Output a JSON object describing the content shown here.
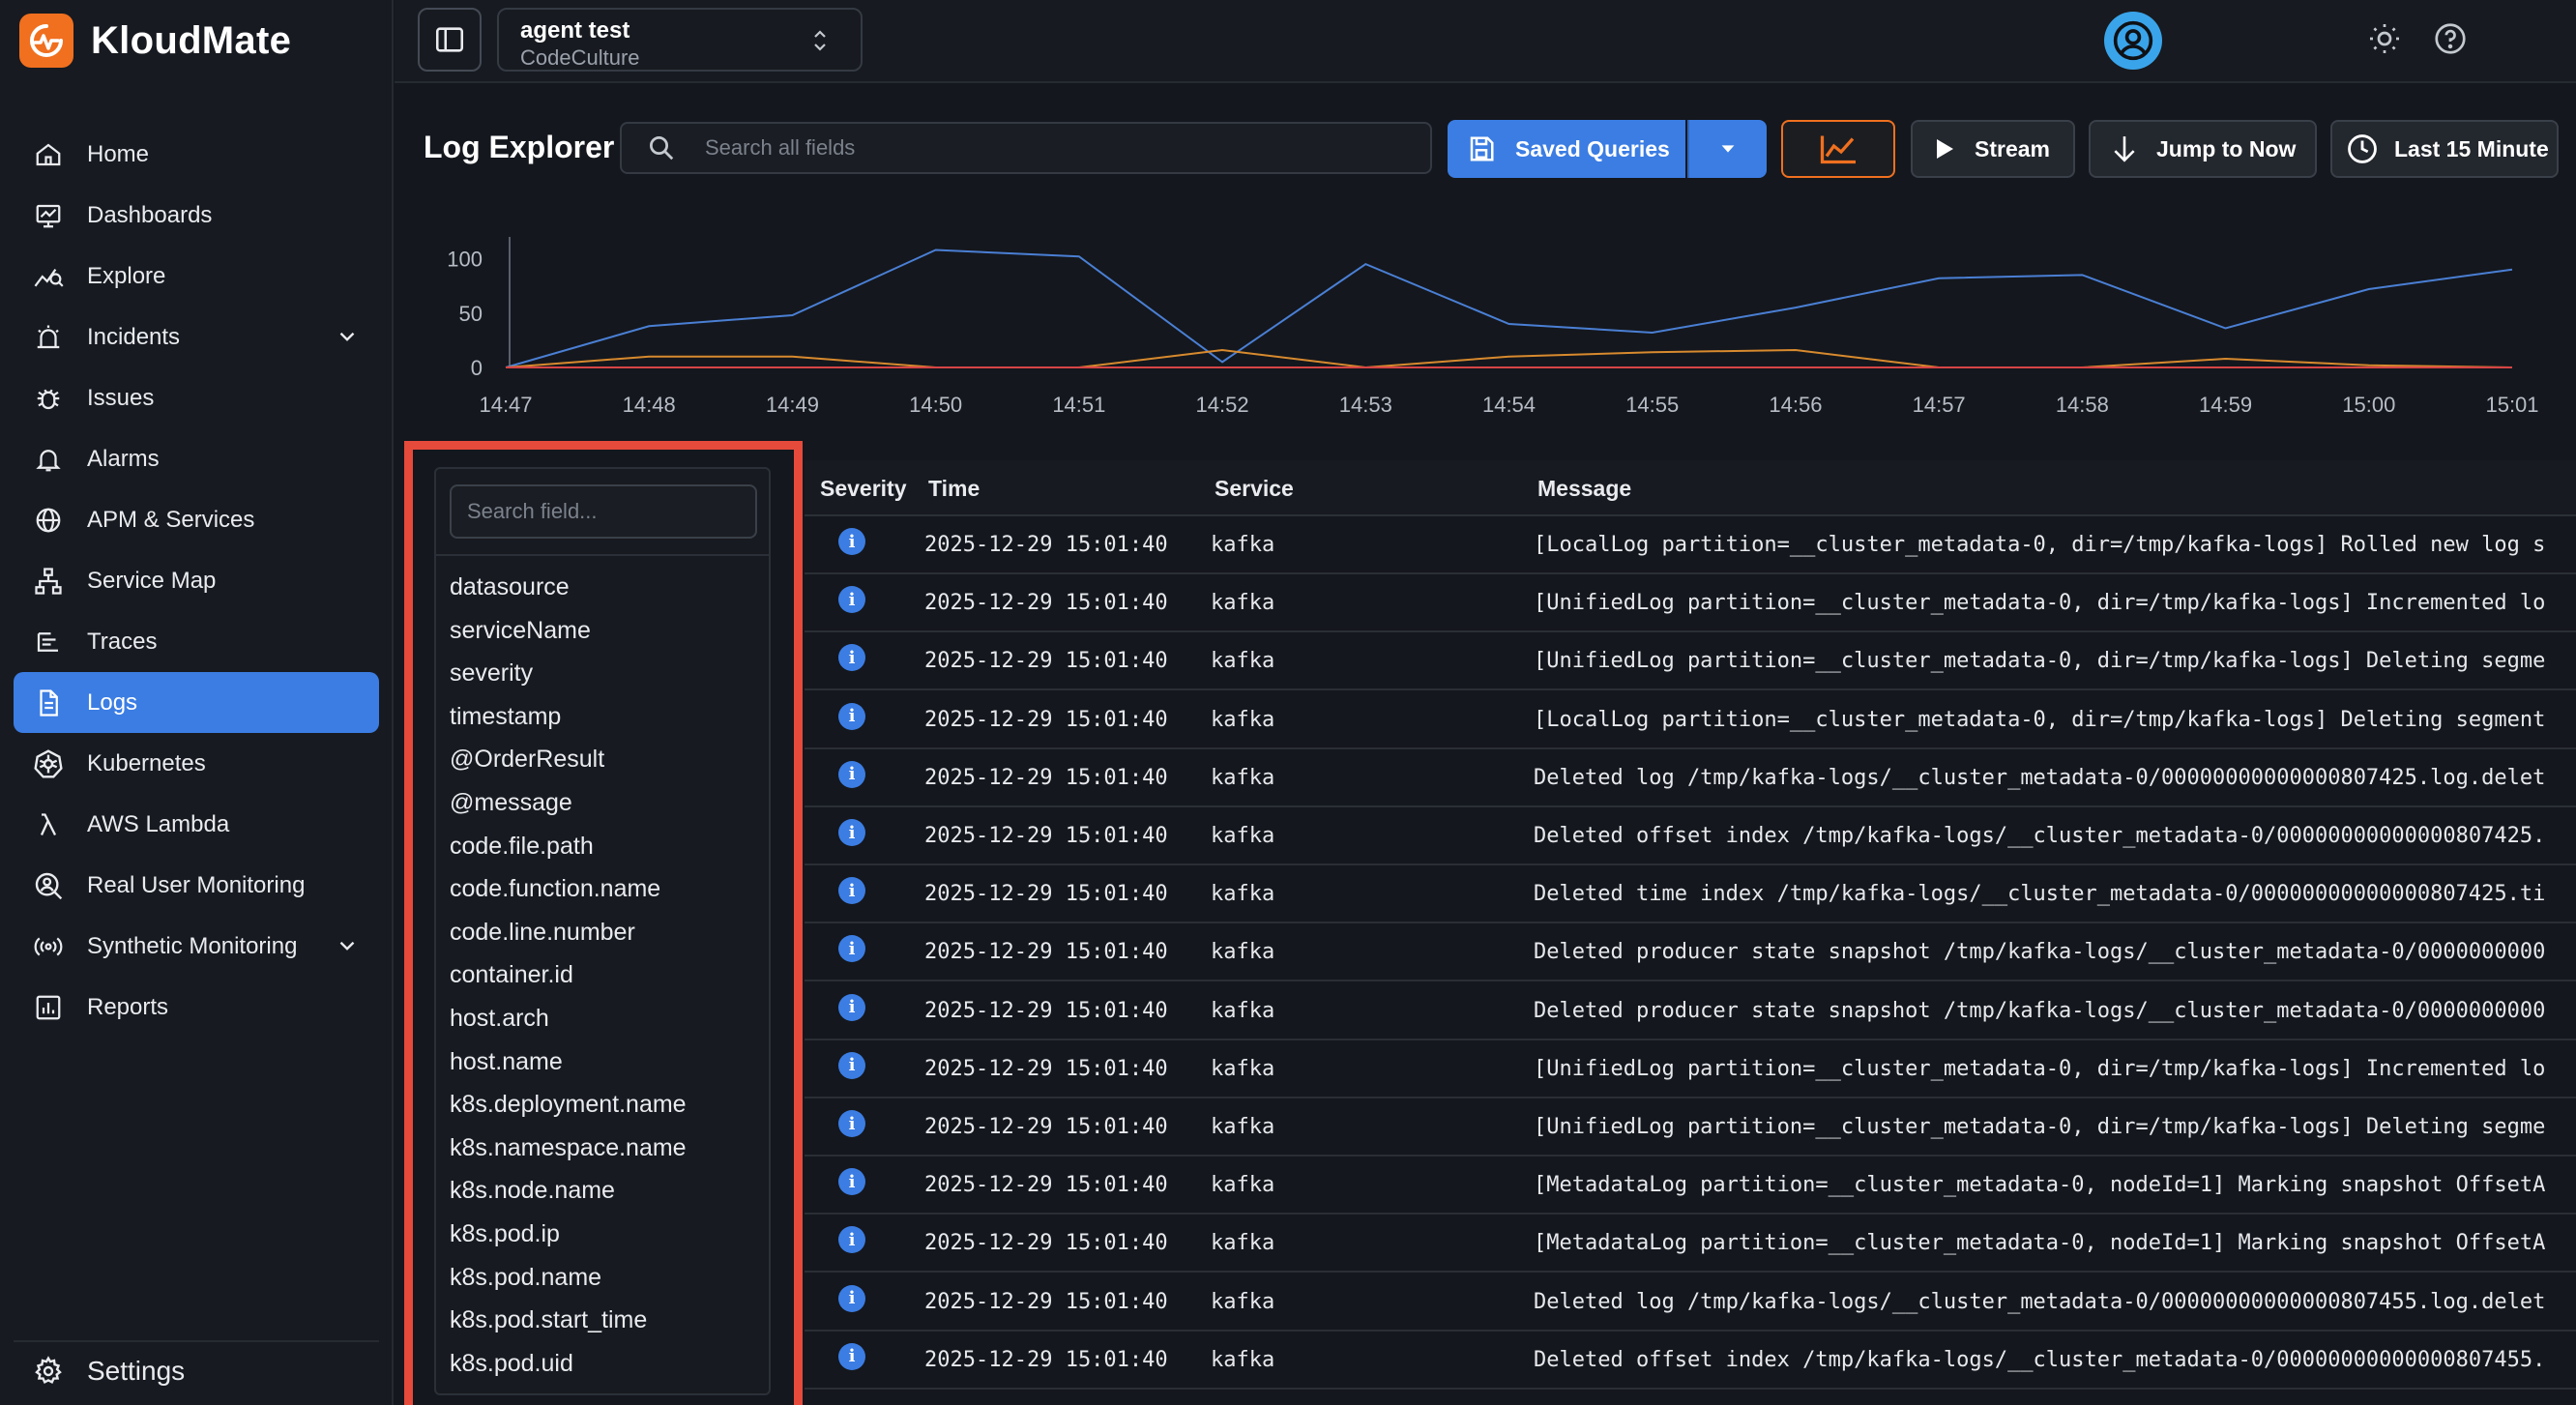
{
  "brand": {
    "name": "KloudMate"
  },
  "sidebar": {
    "items": [
      {
        "label": "Home",
        "icon": "home-icon"
      },
      {
        "label": "Dashboards",
        "icon": "dashboard-icon"
      },
      {
        "label": "Explore",
        "icon": "explore-icon"
      },
      {
        "label": "Incidents",
        "icon": "incidents-icon",
        "expandable": true
      },
      {
        "label": "Issues",
        "icon": "bug-icon"
      },
      {
        "label": "Alarms",
        "icon": "bell-icon"
      },
      {
        "label": "APM & Services",
        "icon": "globe-icon"
      },
      {
        "label": "Service Map",
        "icon": "service-map-icon"
      },
      {
        "label": "Traces",
        "icon": "traces-icon"
      },
      {
        "label": "Logs",
        "icon": "logs-icon",
        "active": true
      },
      {
        "label": "Kubernetes",
        "icon": "kubernetes-icon"
      },
      {
        "label": "AWS Lambda",
        "icon": "lambda-icon"
      },
      {
        "label": "Real User Monitoring",
        "icon": "rum-icon"
      },
      {
        "label": "Synthetic Monitoring",
        "icon": "synthetic-icon",
        "expandable": true
      },
      {
        "label": "Reports",
        "icon": "reports-icon"
      }
    ],
    "settings_label": "Settings"
  },
  "topbar": {
    "org_title": "agent test",
    "org_subtitle": "CodeCulture"
  },
  "toolbar": {
    "page_title": "Log Explorer",
    "search_placeholder": "Search all fields",
    "saved_queries_label": "Saved Queries",
    "stream_label": "Stream",
    "jump_label": "Jump to Now",
    "time_range_label": "Last 15 Minute"
  },
  "chart_data": {
    "type": "line",
    "x": [
      "14:47",
      "14:48",
      "14:49",
      "14:50",
      "14:51",
      "14:52",
      "14:53",
      "14:54",
      "14:55",
      "14:56",
      "14:57",
      "14:58",
      "14:59",
      "15:00",
      "15:01"
    ],
    "yticks": [
      0,
      50,
      100
    ],
    "ylim": [
      0,
      120
    ],
    "series": [
      {
        "color": "#4a7fd4",
        "values": [
          0,
          38,
          48,
          108,
          102,
          5,
          95,
          40,
          32,
          55,
          82,
          85,
          36,
          72,
          90
        ]
      },
      {
        "color": "#d88a2e",
        "values": [
          0,
          10,
          10,
          0,
          0,
          16,
          0,
          10,
          14,
          16,
          0,
          0,
          8,
          2,
          0
        ]
      },
      {
        "color": "#d64545",
        "values": [
          0,
          0,
          0,
          0,
          0,
          0,
          0,
          0,
          0,
          0,
          0,
          0,
          0,
          0,
          0
        ]
      }
    ],
    "grid": false
  },
  "fields": {
    "search_placeholder": "Search field...",
    "items": [
      "datasource",
      "serviceName",
      "severity",
      "timestamp",
      "@OrderResult",
      "@message",
      "code.file.path",
      "code.function.name",
      "code.line.number",
      "container.id",
      "host.arch",
      "host.name",
      "k8s.deployment.name",
      "k8s.namespace.name",
      "k8s.node.name",
      "k8s.pod.ip",
      "k8s.pod.name",
      "k8s.pod.start_time",
      "k8s.pod.uid"
    ]
  },
  "table": {
    "columns": {
      "severity": "Severity",
      "time": "Time",
      "service": "Service",
      "message": "Message"
    },
    "rows": [
      {
        "severity": "i",
        "time": "2025-12-29 15:01:40",
        "service": "kafka",
        "message": "[LocalLog partition=__cluster_metadata-0, dir=/tmp/kafka-logs] Rolled new log s"
      },
      {
        "severity": "i",
        "time": "2025-12-29 15:01:40",
        "service": "kafka",
        "message": "[UnifiedLog partition=__cluster_metadata-0, dir=/tmp/kafka-logs] Incremented lo"
      },
      {
        "severity": "i",
        "time": "2025-12-29 15:01:40",
        "service": "kafka",
        "message": "[UnifiedLog partition=__cluster_metadata-0, dir=/tmp/kafka-logs] Deleting segme"
      },
      {
        "severity": "i",
        "time": "2025-12-29 15:01:40",
        "service": "kafka",
        "message": "[LocalLog partition=__cluster_metadata-0, dir=/tmp/kafka-logs] Deleting segment"
      },
      {
        "severity": "i",
        "time": "2025-12-29 15:01:40",
        "service": "kafka",
        "message": "Deleted log /tmp/kafka-logs/__cluster_metadata-0/00000000000000807425.log.delet"
      },
      {
        "severity": "i",
        "time": "2025-12-29 15:01:40",
        "service": "kafka",
        "message": "Deleted offset index /tmp/kafka-logs/__cluster_metadata-0/00000000000000807425."
      },
      {
        "severity": "i",
        "time": "2025-12-29 15:01:40",
        "service": "kafka",
        "message": "Deleted time index /tmp/kafka-logs/__cluster_metadata-0/00000000000000807425.ti"
      },
      {
        "severity": "i",
        "time": "2025-12-29 15:01:40",
        "service": "kafka",
        "message": "Deleted producer state snapshot /tmp/kafka-logs/__cluster_metadata-0/0000000000"
      },
      {
        "severity": "i",
        "time": "2025-12-29 15:01:40",
        "service": "kafka",
        "message": "Deleted producer state snapshot /tmp/kafka-logs/__cluster_metadata-0/0000000000"
      },
      {
        "severity": "i",
        "time": "2025-12-29 15:01:40",
        "service": "kafka",
        "message": "[UnifiedLog partition=__cluster_metadata-0, dir=/tmp/kafka-logs] Incremented lo"
      },
      {
        "severity": "i",
        "time": "2025-12-29 15:01:40",
        "service": "kafka",
        "message": "[UnifiedLog partition=__cluster_metadata-0, dir=/tmp/kafka-logs] Deleting segme"
      },
      {
        "severity": "i",
        "time": "2025-12-29 15:01:40",
        "service": "kafka",
        "message": "[MetadataLog partition=__cluster_metadata-0, nodeId=1] Marking snapshot OffsetA"
      },
      {
        "severity": "i",
        "time": "2025-12-29 15:01:40",
        "service": "kafka",
        "message": "[MetadataLog partition=__cluster_metadata-0, nodeId=1] Marking snapshot OffsetA"
      },
      {
        "severity": "i",
        "time": "2025-12-29 15:01:40",
        "service": "kafka",
        "message": "Deleted log /tmp/kafka-logs/__cluster_metadata-0/00000000000000807455.log.delet"
      },
      {
        "severity": "i",
        "time": "2025-12-29 15:01:40",
        "service": "kafka",
        "message": "Deleted offset index /tmp/kafka-logs/__cluster_metadata-0/00000000000000807455."
      }
    ]
  },
  "colors": {
    "accent": "#3b7de3",
    "brand": "#f0701f",
    "highlight": "#e64a3b"
  }
}
